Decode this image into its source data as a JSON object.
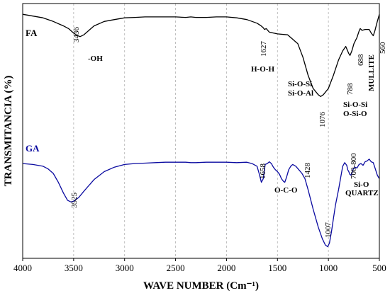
{
  "chart_data": {
    "type": "line",
    "xlabel": "WAVE NUMBER (Cm⁻¹)",
    "ylabel": "TRANSMITANCIA (%)",
    "xlim": [
      4000,
      500
    ],
    "x_reversed": true,
    "x_ticks": [
      4000,
      3500,
      3000,
      2500,
      2000,
      1500,
      1000,
      500
    ],
    "grid_x": [
      3500,
      3000,
      2500,
      2000,
      1500,
      1000
    ],
    "y_ticks_shown": false,
    "colors": {
      "FA": "#000000",
      "GA": "#0a0aa0",
      "grid": "#b0b0b0"
    },
    "series": [
      {
        "name": "FA",
        "color": "#000000",
        "x": [
          4000,
          3900,
          3800,
          3700,
          3600,
          3550,
          3500,
          3460,
          3436,
          3400,
          3350,
          3300,
          3200,
          3100,
          3000,
          2900,
          2800,
          2700,
          2600,
          2500,
          2400,
          2350,
          2300,
          2200,
          2100,
          2000,
          1900,
          1800,
          1700,
          1660,
          1640,
          1627,
          1610,
          1580,
          1500,
          1400,
          1300,
          1250,
          1200,
          1150,
          1100,
          1076,
          1050,
          1000,
          950,
          900,
          860,
          830,
          800,
          788,
          770,
          750,
          720,
          700,
          688,
          670,
          640,
          600,
          580,
          560,
          545,
          520,
          500
        ],
        "y": [
          88,
          86,
          84,
          80,
          75,
          72,
          67,
          64,
          63,
          65,
          70,
          75,
          80,
          82,
          84,
          84.5,
          85,
          85,
          85,
          85,
          84.5,
          85,
          84.5,
          84.5,
          85,
          85,
          84,
          82,
          78,
          75,
          73,
          71,
          72,
          68,
          66,
          65,
          55,
          40,
          20,
          5,
          -2,
          -4,
          -2,
          5,
          20,
          37,
          47,
          52,
          44,
          42,
          47,
          55,
          62,
          69,
          72,
          70,
          71,
          71,
          67,
          64,
          69,
          80,
          88
        ]
      },
      {
        "name": "GA",
        "color": "#0a0aa0",
        "x": [
          4000,
          3900,
          3800,
          3750,
          3700,
          3650,
          3600,
          3560,
          3525,
          3500,
          3450,
          3400,
          3300,
          3200,
          3100,
          3000,
          2900,
          2800,
          2700,
          2600,
          2500,
          2400,
          2350,
          2300,
          2200,
          2100,
          2000,
          1900,
          1800,
          1750,
          1700,
          1680,
          1658,
          1640,
          1620,
          1600,
          1580,
          1560,
          1540,
          1520,
          1500,
          1480,
          1460,
          1440,
          1428,
          1410,
          1390,
          1370,
          1350,
          1320,
          1290,
          1260,
          1230,
          1200,
          1150,
          1100,
          1060,
          1030,
          1007,
          990,
          970,
          950,
          930,
          900,
          880,
          860,
          840,
          820,
          810,
          800,
          790,
          780,
          770,
          760,
          740,
          720,
          700,
          680,
          660,
          640,
          620,
          600,
          580,
          560,
          540,
          520,
          500
        ],
        "y": [
          -79,
          -80,
          -82,
          -85,
          -90,
          -100,
          -112,
          -120,
          -122,
          -121,
          -117,
          -110,
          -97,
          -88,
          -83,
          -80,
          -79,
          -78.5,
          -78,
          -77.5,
          -77.5,
          -77.5,
          -78,
          -78,
          -77.5,
          -77.5,
          -77.5,
          -78,
          -77.5,
          -79,
          -82,
          -90,
          -100,
          -96,
          -80,
          -79,
          -77,
          -79,
          -83,
          -86,
          -88,
          -91,
          -96,
          -99,
          -100,
          -94,
          -86,
          -82,
          -80,
          -82,
          -86,
          -90,
          -96,
          -108,
          -130,
          -150,
          -163,
          -170,
          -172,
          -168,
          -155,
          -140,
          -125,
          -108,
          -95,
          -82,
          -78,
          -81,
          -86,
          -88,
          -91,
          -92,
          -90,
          -86,
          -83,
          -84,
          -80,
          -79,
          -81,
          -77,
          -76,
          -74,
          -77,
          -78,
          -85,
          -92,
          -96
        ]
      }
    ],
    "series_labels": [
      "FA",
      "GA"
    ],
    "annotations": {
      "FA": [
        {
          "x": 3436,
          "text": "3436",
          "style": "rotated"
        },
        {
          "x": 3290,
          "text": "-OH",
          "style": "bold"
        },
        {
          "x": 1627,
          "text": "1627",
          "style": "rotated"
        },
        {
          "x": 1610,
          "text": "H-O-H",
          "style": "bold"
        },
        {
          "x": 1076,
          "text": "1076",
          "style": "rotated"
        },
        {
          "x": 1190,
          "text": "Si-O-Si",
          "style": "bold"
        },
        {
          "x": 1190,
          "text": "Si-O-Al",
          "style": "bold"
        },
        {
          "x": 788,
          "text": "788",
          "style": "rotated"
        },
        {
          "x": 688,
          "text": "688",
          "style": "rotated"
        },
        {
          "x": 560,
          "text": "560",
          "style": "rotated"
        },
        {
          "x": 620,
          "text": "MULLITE",
          "style": "rotated-bold"
        },
        {
          "x": 790,
          "text": "Si-O-Si",
          "style": "bold"
        },
        {
          "x": 790,
          "text": "O-Si-O",
          "style": "bold"
        }
      ],
      "GA": [
        {
          "x": 3525,
          "text": "3525",
          "style": "rotated"
        },
        {
          "x": 1658,
          "text": "1658",
          "style": "rotated"
        },
        {
          "x": 1428,
          "text": "1428",
          "style": "rotated"
        },
        {
          "x": 1410,
          "text": "O-C-O",
          "style": "bold"
        },
        {
          "x": 1007,
          "text": "1007",
          "style": "rotated"
        },
        {
          "x": 750,
          "text": "700-800",
          "style": "rotated"
        },
        {
          "x": 770,
          "text": "Si-O",
          "style": "bold"
        },
        {
          "x": 770,
          "text": "QUARTZ",
          "style": "bold"
        }
      ]
    }
  }
}
